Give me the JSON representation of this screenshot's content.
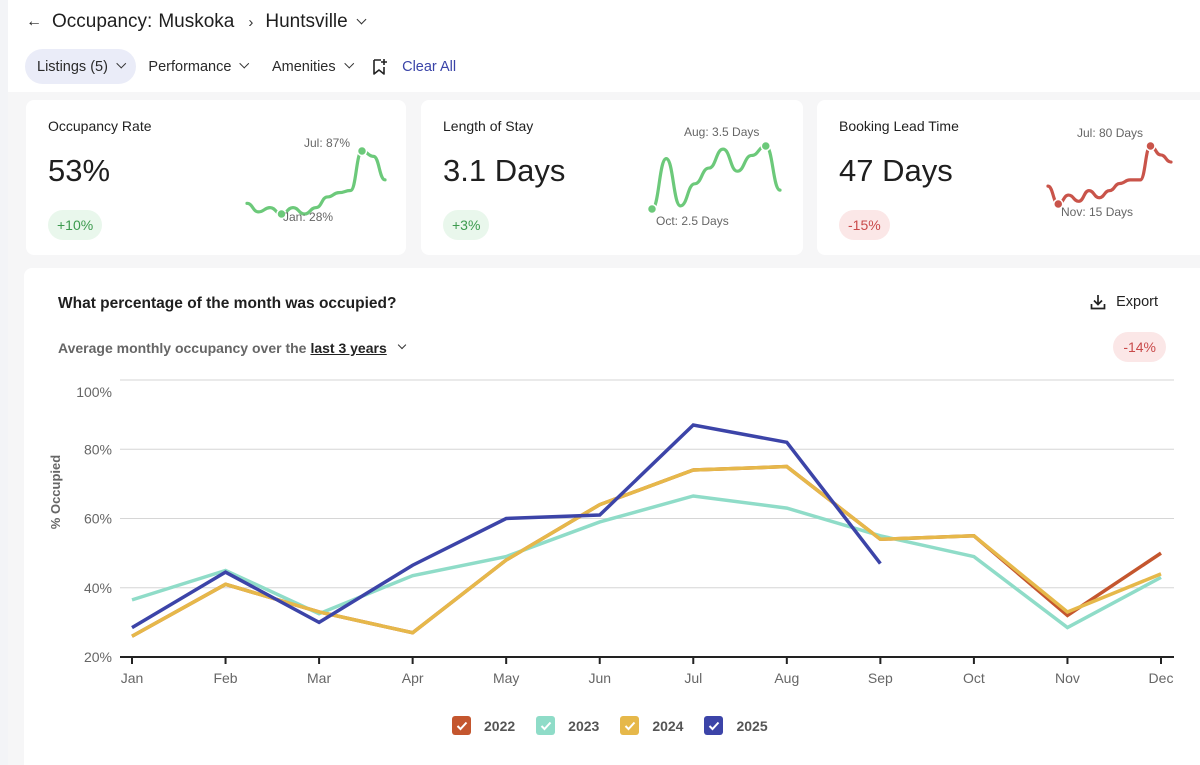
{
  "header": {
    "title_prefix": "Occupancy:",
    "region": "Muskoka",
    "breadcrumb_separator": "›",
    "city": "Huntsville",
    "back_icon": "arrow-left-icon"
  },
  "filters": {
    "items": [
      {
        "label": "Listings (5)",
        "active": true
      },
      {
        "label": "Performance",
        "active": false
      },
      {
        "label": "Amenities",
        "active": false
      }
    ],
    "bookmark_icon": "bookmark-plus-icon",
    "clear_label": "Clear All"
  },
  "kpis": [
    {
      "label": "Occupancy Rate",
      "value": "53%",
      "change": "+10%",
      "change_type": "positive",
      "color": "#6cc97a",
      "high_label": "Jul: 87%",
      "low_label": "Jan: 28%",
      "spark": [
        38,
        30,
        34,
        28,
        34,
        28,
        34,
        44,
        48,
        50,
        87,
        82,
        60
      ],
      "high_index": 10,
      "low_index": 3
    },
    {
      "label": "Length of Stay",
      "value": "3.1 Days",
      "change": "+3%",
      "change_type": "positive",
      "color": "#6cc97a",
      "high_label": "Aug: 3.5 Days",
      "low_label": "Oct: 2.5 Days",
      "spark": [
        2.5,
        3.3,
        2.55,
        2.9,
        3.15,
        3.45,
        3.1,
        3.35,
        3.5,
        2.8
      ],
      "high_index": 8,
      "low_index": 0
    },
    {
      "label": "Booking Lead Time",
      "value": "47 Days",
      "change": "-15%",
      "change_type": "negative",
      "color": "#c9544a",
      "high_label": "Jul: 80 Days",
      "low_label": "Nov: 15 Days",
      "spark": [
        35,
        15,
        25,
        18,
        30,
        22,
        30,
        38,
        42,
        42,
        80,
        70,
        62
      ],
      "high_index": 10,
      "low_index": 1
    }
  ],
  "panel": {
    "question": "What percentage of the month was occupied?",
    "subtitle_prefix": "Average monthly occupancy over the",
    "period": "last 3 years",
    "export_label": "Export",
    "export_icon": "download-icon",
    "change": "-14%"
  },
  "chart_data": {
    "type": "line",
    "title": "What percentage of the month was occupied?",
    "xlabel": "",
    "ylabel": "% Occupied",
    "categories": [
      "Jan",
      "Feb",
      "Mar",
      "Apr",
      "May",
      "Jun",
      "Jul",
      "Aug",
      "Sep",
      "Oct",
      "Nov",
      "Dec"
    ],
    "yticks": [
      "20%",
      "40%",
      "60%",
      "80%",
      "100%"
    ],
    "ylim": [
      20,
      100
    ],
    "grid": true,
    "legend_position": "bottom",
    "series": [
      {
        "name": "2022",
        "color": "#c4562e",
        "values": [
          26,
          41,
          33,
          27,
          48,
          64,
          74,
          75,
          54,
          55,
          32,
          50
        ]
      },
      {
        "name": "2023",
        "color": "#8fdcc8",
        "values": [
          36.5,
          45,
          32.5,
          43.5,
          49,
          59,
          66.5,
          63,
          55,
          49,
          28.5,
          43
        ]
      },
      {
        "name": "2024",
        "color": "#e6b84a",
        "values": [
          26,
          41,
          33,
          27,
          48,
          64,
          74,
          75,
          54,
          55,
          33,
          44
        ]
      },
      {
        "name": "2025",
        "color": "#3c44a8",
        "values": [
          28.5,
          44.5,
          30,
          46.5,
          60,
          61,
          87,
          82,
          47,
          null,
          null,
          null
        ]
      }
    ]
  }
}
